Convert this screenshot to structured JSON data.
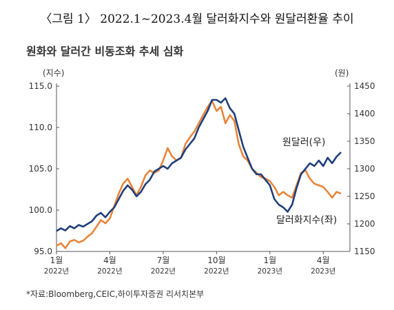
{
  "figure_title": "〈그림 1〉 2022.1~2023.4월 달러화지수와 원달러환율 추이",
  "source_note": "*자료:Bloomberg,CEIC,하이투자증권 리서치본부",
  "colors": {
    "usdkrw": "#1f3e7a",
    "dxy": "#e8843a",
    "axis": "#555555"
  },
  "chart_data": {
    "type": "line",
    "title": "원화와 달러간 비동조화 추세 심화",
    "y_left": {
      "label": "(지수)",
      "range": [
        95.0,
        115.0
      ],
      "ticks": [
        "95.0",
        "100.0",
        "105.0",
        "110.0",
        "115.0"
      ]
    },
    "y_right": {
      "label": "(원)",
      "range": [
        1150,
        1450
      ],
      "ticks": [
        "1150",
        "1200",
        "1250",
        "1300",
        "1350",
        "1400",
        "1450"
      ]
    },
    "x_ticks": [
      {
        "month": "1월",
        "year": "2022년",
        "t": 0
      },
      {
        "month": "4월",
        "year": "2022년",
        "t": 3
      },
      {
        "month": "7월",
        "year": "2022년",
        "t": 6
      },
      {
        "month": "10월",
        "year": "2022년",
        "t": 9
      },
      {
        "month": "1월",
        "year": "2023년",
        "t": 12
      },
      {
        "month": "4월",
        "year": "2023년",
        "t": 15
      }
    ],
    "x_range": [
      0,
      16.5
    ],
    "grid": false,
    "series": [
      {
        "name": "원달러(우)",
        "axis": "right",
        "points": [
          [
            0,
            1187
          ],
          [
            0.25,
            1192
          ],
          [
            0.5,
            1188
          ],
          [
            0.75,
            1196
          ],
          [
            1,
            1192
          ],
          [
            1.25,
            1198
          ],
          [
            1.5,
            1195
          ],
          [
            1.75,
            1200
          ],
          [
            2,
            1205
          ],
          [
            2.25,
            1215
          ],
          [
            2.5,
            1220
          ],
          [
            2.75,
            1212
          ],
          [
            3,
            1222
          ],
          [
            3.25,
            1230
          ],
          [
            3.5,
            1245
          ],
          [
            3.75,
            1260
          ],
          [
            4,
            1270
          ],
          [
            4.25,
            1262
          ],
          [
            4.5,
            1250
          ],
          [
            4.75,
            1258
          ],
          [
            5,
            1272
          ],
          [
            5.25,
            1280
          ],
          [
            5.5,
            1295
          ],
          [
            5.75,
            1300
          ],
          [
            6,
            1305
          ],
          [
            6.25,
            1300
          ],
          [
            6.5,
            1310
          ],
          [
            6.75,
            1315
          ],
          [
            7,
            1320
          ],
          [
            7.25,
            1335
          ],
          [
            7.5,
            1345
          ],
          [
            7.75,
            1355
          ],
          [
            8,
            1375
          ],
          [
            8.25,
            1390
          ],
          [
            8.5,
            1405
          ],
          [
            8.75,
            1425
          ],
          [
            9,
            1425
          ],
          [
            9.25,
            1420
          ],
          [
            9.5,
            1428
          ],
          [
            9.75,
            1410
          ],
          [
            10,
            1400
          ],
          [
            10.25,
            1370
          ],
          [
            10.5,
            1340
          ],
          [
            10.75,
            1320
          ],
          [
            11,
            1300
          ],
          [
            11.25,
            1290
          ],
          [
            11.5,
            1290
          ],
          [
            11.75,
            1280
          ],
          [
            12,
            1270
          ],
          [
            12.25,
            1245
          ],
          [
            12.5,
            1235
          ],
          [
            12.75,
            1230
          ],
          [
            13,
            1222
          ],
          [
            13.25,
            1235
          ],
          [
            13.5,
            1265
          ],
          [
            13.75,
            1290
          ],
          [
            14,
            1300
          ],
          [
            14.25,
            1310
          ],
          [
            14.5,
            1305
          ],
          [
            14.75,
            1315
          ],
          [
            15,
            1305
          ],
          [
            15.25,
            1320
          ],
          [
            15.5,
            1310
          ],
          [
            15.75,
            1322
          ],
          [
            16,
            1330
          ]
        ]
      },
      {
        "name": "달러화지수(좌)",
        "axis": "left",
        "points": [
          [
            0,
            95.7
          ],
          [
            0.25,
            96.0
          ],
          [
            0.5,
            95.4
          ],
          [
            0.75,
            96.2
          ],
          [
            1,
            96.4
          ],
          [
            1.25,
            96.1
          ],
          [
            1.5,
            96.3
          ],
          [
            1.75,
            96.8
          ],
          [
            2,
            97.2
          ],
          [
            2.25,
            98.0
          ],
          [
            2.5,
            98.8
          ],
          [
            2.75,
            98.4
          ],
          [
            3,
            99.0
          ],
          [
            3.25,
            100.5
          ],
          [
            3.5,
            102.0
          ],
          [
            3.75,
            103.2
          ],
          [
            4,
            103.8
          ],
          [
            4.25,
            102.8
          ],
          [
            4.5,
            101.8
          ],
          [
            4.75,
            102.8
          ],
          [
            5,
            104.2
          ],
          [
            5.25,
            104.8
          ],
          [
            5.5,
            104.5
          ],
          [
            5.75,
            104.8
          ],
          [
            6,
            106.0
          ],
          [
            6.25,
            107.5
          ],
          [
            6.5,
            106.5
          ],
          [
            6.75,
            106.0
          ],
          [
            7,
            106.3
          ],
          [
            7.25,
            108.0
          ],
          [
            7.5,
            108.8
          ],
          [
            7.75,
            109.5
          ],
          [
            8,
            110.5
          ],
          [
            8.25,
            111.5
          ],
          [
            8.5,
            112.5
          ],
          [
            8.75,
            113.2
          ],
          [
            9,
            112.0
          ],
          [
            9.25,
            112.5
          ],
          [
            9.5,
            110.5
          ],
          [
            9.75,
            111.5
          ],
          [
            10,
            110.8
          ],
          [
            10.25,
            108.0
          ],
          [
            10.5,
            106.5
          ],
          [
            10.75,
            106.0
          ],
          [
            11,
            105.0
          ],
          [
            11.25,
            104.5
          ],
          [
            11.5,
            104.0
          ],
          [
            11.75,
            103.8
          ],
          [
            12,
            103.5
          ],
          [
            12.25,
            102.8
          ],
          [
            12.5,
            101.8
          ],
          [
            12.75,
            102.2
          ],
          [
            13,
            101.8
          ],
          [
            13.25,
            101.5
          ],
          [
            13.5,
            103.0
          ],
          [
            13.75,
            104.5
          ],
          [
            14,
            104.8
          ],
          [
            14.25,
            103.8
          ],
          [
            14.5,
            103.2
          ],
          [
            14.75,
            103.0
          ],
          [
            15,
            102.8
          ],
          [
            15.25,
            102.2
          ],
          [
            15.5,
            101.5
          ],
          [
            15.75,
            102.2
          ],
          [
            16,
            102.0
          ]
        ]
      }
    ],
    "annotations": [
      "원달러(우)",
      "달러화지수(좌)"
    ]
  }
}
